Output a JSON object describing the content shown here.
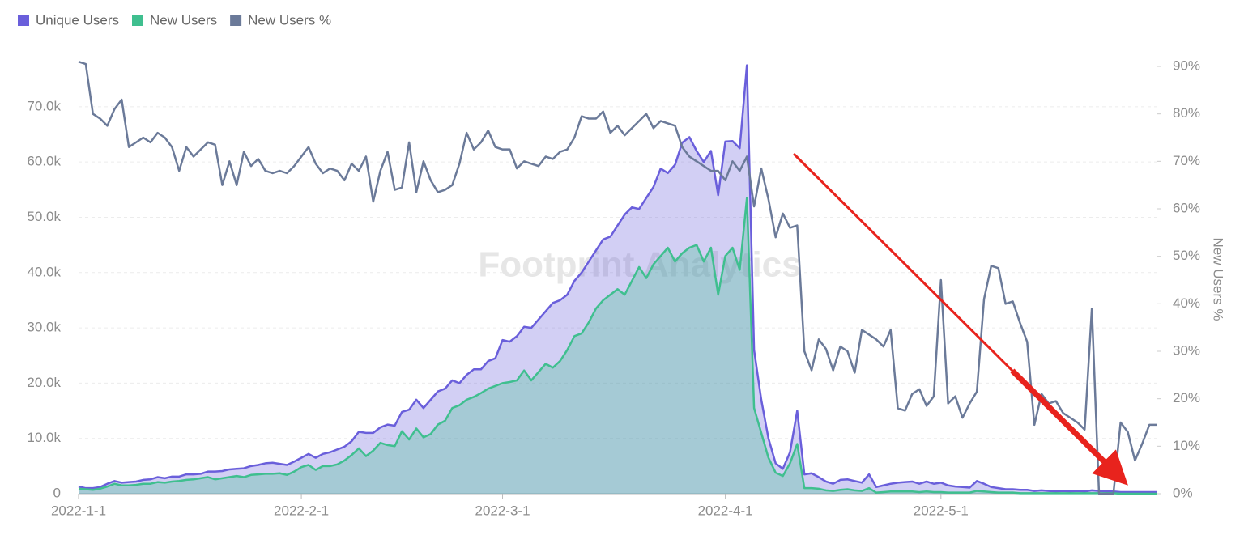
{
  "chart_data": {
    "type": "line-area",
    "watermark": "Footprint Analytics",
    "y2_label": "New Users %",
    "categories": [
      "2022-1-1",
      null,
      null,
      null,
      null,
      null,
      null,
      null,
      null,
      null,
      null,
      null,
      null,
      null,
      null,
      null,
      null,
      null,
      null,
      null,
      null,
      null,
      null,
      null,
      null,
      null,
      null,
      null,
      null,
      null,
      null,
      "2022-2-1",
      null,
      null,
      null,
      null,
      null,
      null,
      null,
      null,
      null,
      null,
      null,
      null,
      null,
      null,
      null,
      null,
      null,
      null,
      null,
      null,
      null,
      null,
      null,
      null,
      null,
      null,
      null,
      "2022-3-1",
      null,
      null,
      null,
      null,
      null,
      null,
      null,
      null,
      null,
      null,
      null,
      null,
      null,
      null,
      null,
      null,
      null,
      null,
      null,
      null,
      null,
      null,
      null,
      null,
      null,
      null,
      null,
      null,
      null,
      null,
      "2022-4-1",
      null,
      null,
      null,
      null,
      null,
      null,
      null,
      null,
      null,
      null,
      null,
      null,
      null,
      null,
      null,
      null,
      null,
      null,
      null,
      null,
      null,
      null,
      null,
      null,
      null,
      null,
      null,
      null,
      null,
      "2022-5-1",
      null,
      null,
      null,
      null,
      null,
      null,
      null,
      null,
      null,
      null,
      null,
      null,
      null,
      null,
      null,
      null,
      null,
      null,
      null,
      null,
      null,
      null,
      null,
      null,
      null,
      null,
      null,
      null,
      null,
      null
    ],
    "ylim": [
      0,
      77300
    ],
    "yticks": [
      0,
      {
        "value": 10000,
        "label": "10.0k"
      },
      {
        "value": 20000,
        "label": "20.0k"
      },
      {
        "value": 30000,
        "label": "30.0k"
      },
      {
        "value": 40000,
        "label": "40.0k"
      },
      {
        "value": 50000,
        "label": "50.0k"
      },
      {
        "value": 60000,
        "label": "60.0k"
      },
      {
        "value": 70000,
        "label": "70.0k"
      }
    ],
    "y2lim": [
      0,
      90
    ],
    "y2ticks": [
      {
        "value": 0,
        "label": "0%"
      },
      {
        "value": 10,
        "label": "10%"
      },
      {
        "value": 20,
        "label": "20%"
      },
      {
        "value": 30,
        "label": "30%"
      },
      {
        "value": 40,
        "label": "40%"
      },
      {
        "value": 50,
        "label": "50%"
      },
      {
        "value": 60,
        "label": "60%"
      },
      {
        "value": 70,
        "label": "70%"
      },
      {
        "value": 80,
        "label": "80%"
      },
      {
        "value": 90,
        "label": "90%"
      }
    ],
    "grid": true,
    "legend": "top-left",
    "series": [
      {
        "name": "Unique Users",
        "color": "#6a5fdb",
        "area": true,
        "values": [
          1300,
          1000,
          1000,
          1200,
          1800,
          2300,
          2000,
          2100,
          2200,
          2500,
          2600,
          3000,
          2800,
          3100,
          3100,
          3500,
          3500,
          3600,
          4000,
          4000,
          4100,
          4400,
          4500,
          4600,
          5000,
          5200,
          5500,
          5600,
          5400,
          5200,
          5800,
          6500,
          7200,
          6500,
          7200,
          7500,
          8000,
          8500,
          9500,
          11200,
          11000,
          11000,
          12000,
          12500,
          12300,
          14800,
          15200,
          17000,
          15500,
          17000,
          18500,
          19000,
          20500,
          20000,
          21500,
          22500,
          22500,
          24000,
          24500,
          27800,
          27500,
          28500,
          30200,
          30000,
          31500,
          33000,
          34500,
          35000,
          36000,
          38500,
          40000,
          42000,
          44000,
          46000,
          46500,
          48500,
          50500,
          51800,
          51500,
          53500,
          55500,
          58800,
          58000,
          59500,
          63500,
          64500,
          62000,
          60000,
          62000,
          54000,
          63700,
          63800,
          62500,
          77500,
          26000,
          17000,
          10000,
          5500,
          4500,
          7500,
          15000,
          3500,
          3700,
          3000,
          2200,
          1800,
          2500,
          2600,
          2300,
          2000,
          3500,
          1200,
          1500,
          1800,
          2000,
          2100,
          2200,
          1800,
          2200,
          1800,
          2000,
          1500,
          1300,
          1200,
          1100,
          2300,
          1800,
          1200,
          1000,
          800,
          800,
          700,
          700,
          500,
          600,
          500,
          400,
          500,
          400,
          500,
          400,
          600,
          500,
          400,
          400,
          300,
          300,
          300,
          300,
          300,
          300
        ]
      },
      {
        "name": "New Users",
        "color": "#3fbf8f",
        "area": true,
        "values": [
          900,
          800,
          700,
          900,
          1300,
          1800,
          1500,
          1500,
          1600,
          1800,
          1800,
          2100,
          2000,
          2200,
          2300,
          2500,
          2600,
          2800,
          3000,
          2600,
          2800,
          3000,
          3200,
          3000,
          3400,
          3500,
          3600,
          3600,
          3700,
          3400,
          4000,
          4800,
          5200,
          4300,
          5000,
          5000,
          5300,
          6000,
          7000,
          8200,
          6800,
          7800,
          9200,
          8800,
          8600,
          11300,
          9800,
          11800,
          10200,
          10800,
          12500,
          13200,
          15500,
          16000,
          17000,
          17500,
          18200,
          19000,
          19500,
          20000,
          20200,
          20500,
          22300,
          20500,
          22000,
          23500,
          22800,
          24000,
          26000,
          28500,
          29000,
          31000,
          33500,
          35000,
          36000,
          37000,
          36000,
          38500,
          41000,
          39000,
          41500,
          43000,
          44500,
          42000,
          43500,
          44500,
          45000,
          42000,
          44500,
          36000,
          43000,
          44500,
          40500,
          53500,
          15500,
          11000,
          6500,
          3800,
          3200,
          5500,
          9000,
          1000,
          1000,
          900,
          600,
          500,
          700,
          800,
          600,
          500,
          1000,
          200,
          300,
          400,
          400,
          400,
          400,
          300,
          400,
          300,
          300,
          200,
          200,
          200,
          200,
          500,
          400,
          300,
          200,
          200,
          200,
          100,
          100,
          100,
          100,
          100,
          100,
          100,
          100,
          100,
          100,
          100,
          100,
          100,
          100,
          0,
          0,
          0,
          0,
          0,
          0
        ]
      },
      {
        "name": "New Users %",
        "color": "#6b7a99",
        "axis": "y2",
        "area": false,
        "values": [
          91,
          90.5,
          80,
          79,
          77.5,
          81,
          83,
          73,
          74,
          75,
          74,
          76,
          75,
          73,
          68,
          73,
          71,
          72.5,
          74,
          73.5,
          65,
          70,
          65,
          72,
          69,
          70.5,
          68,
          67.5,
          68,
          67.5,
          69,
          71,
          73,
          69.5,
          67.5,
          68.5,
          68,
          66,
          69.5,
          68,
          71,
          61.5,
          68,
          72,
          64,
          64.5,
          74,
          63.5,
          70,
          66,
          63.5,
          64,
          65,
          69.5,
          76,
          72.5,
          74,
          76.5,
          73,
          72.5,
          72.5,
          68.5,
          70,
          69.5,
          69,
          71,
          70.5,
          72,
          72.5,
          75,
          79.5,
          79,
          79,
          80.5,
          76,
          77.5,
          75.5,
          77,
          78.5,
          80,
          77,
          78.5,
          78,
          77.5,
          73,
          71,
          70,
          69,
          68,
          68,
          66,
          70,
          68,
          71,
          60.5,
          68.5,
          62,
          54,
          59,
          56,
          56.5,
          30,
          26,
          32.5,
          30.5,
          26,
          31,
          30,
          25.5,
          34.5,
          33.5,
          32.5,
          31,
          34.5,
          18,
          17.5,
          21,
          22,
          18.5,
          20.5,
          45,
          19,
          20.5,
          16,
          19,
          21.5,
          41,
          48,
          47.5,
          40,
          40.5,
          36,
          32,
          14.5,
          21,
          19,
          19.5,
          17,
          16,
          15,
          13.5,
          39,
          0,
          0,
          0,
          15,
          13,
          7,
          10.5,
          14.5,
          14.5
        ]
      }
    ]
  }
}
